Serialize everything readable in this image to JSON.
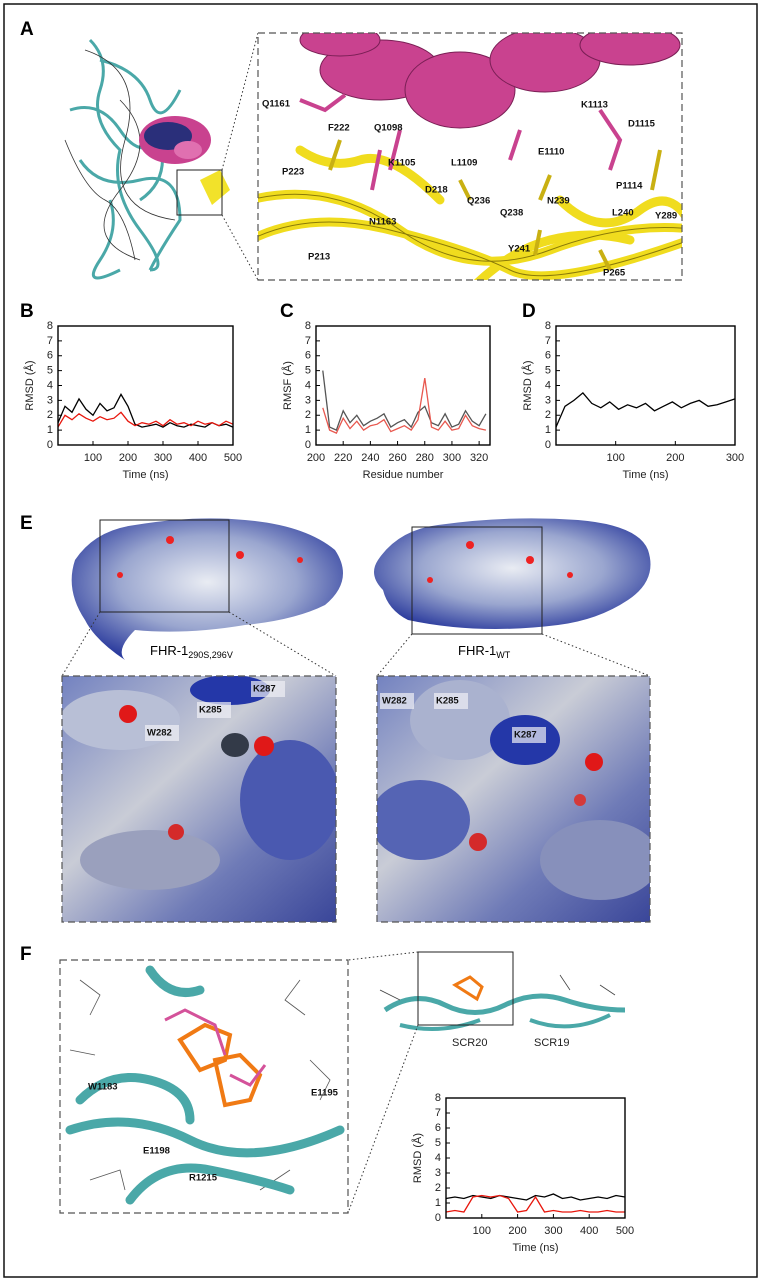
{
  "panel_labels": [
    "A",
    "B",
    "C",
    "D",
    "E",
    "F"
  ],
  "panel_a": {
    "residues": [
      "Q1161",
      "F222",
      "Q1098",
      "K1105",
      "L1109",
      "E1110",
      "K1113",
      "D1115",
      "P223",
      "D218",
      "Q236",
      "Q238",
      "N239",
      "P1114",
      "L240",
      "Y289",
      "N1163",
      "P213",
      "Y241",
      "P265"
    ]
  },
  "panel_e": {
    "left": {
      "name": "FHR-1",
      "subscript": "290S,296V",
      "residues": [
        "K287",
        "K285",
        "W282"
      ]
    },
    "right": {
      "name": "FHR-1",
      "subscript": "WT",
      "residues": [
        "W282",
        "K285",
        "K287"
      ]
    }
  },
  "panel_f": {
    "residues": [
      "W1183",
      "E1195",
      "E1198",
      "R1215"
    ],
    "domains": [
      "SCR20",
      "SCR19"
    ]
  },
  "chart_data": [
    {
      "type": "line",
      "x_label": "Time (ns)",
      "y_label": "RMSD (Å)",
      "x": [
        0,
        20,
        40,
        60,
        80,
        100,
        120,
        140,
        160,
        180,
        200,
        220,
        240,
        260,
        280,
        300,
        320,
        340,
        360,
        380,
        400,
        420,
        440,
        460,
        480,
        500
      ],
      "xlim": [
        0,
        500
      ],
      "xticks": [
        100,
        200,
        300,
        400,
        500
      ],
      "ylim": [
        0,
        8
      ],
      "yticks": [
        0,
        1,
        2,
        3,
        4,
        5,
        6,
        7,
        8
      ],
      "series": [
        {
          "color": "#000000",
          "values": [
            1.5,
            2.6,
            2.2,
            3.1,
            2.4,
            2.0,
            2.8,
            2.3,
            2.5,
            3.4,
            2.6,
            1.4,
            1.2,
            1.3,
            1.4,
            1.2,
            1.5,
            1.3,
            1.2,
            1.4,
            1.3,
            1.2,
            1.5,
            1.3,
            1.4,
            1.2
          ]
        },
        {
          "color": "#e8160c",
          "values": [
            1.2,
            2.0,
            1.7,
            2.1,
            1.8,
            1.6,
            1.9,
            1.7,
            1.8,
            2.2,
            1.6,
            1.3,
            1.5,
            1.4,
            1.6,
            1.3,
            1.7,
            1.4,
            1.5,
            1.3,
            1.6,
            1.4,
            1.5,
            1.3,
            1.6,
            1.4
          ]
        }
      ]
    },
    {
      "type": "line",
      "x_label": "Residue number",
      "y_label": "RMSF (Å)",
      "x": [
        205,
        210,
        215,
        220,
        225,
        230,
        235,
        240,
        245,
        250,
        255,
        260,
        265,
        270,
        275,
        280,
        285,
        290,
        295,
        300,
        305,
        310,
        315,
        320,
        325
      ],
      "xlim": [
        200,
        328
      ],
      "xticks": [
        200,
        220,
        240,
        260,
        280,
        300,
        320
      ],
      "ylim": [
        0,
        8
      ],
      "yticks": [
        0,
        1,
        2,
        3,
        4,
        5,
        6,
        7,
        8
      ],
      "series": [
        {
          "color": "#555555",
          "values": [
            5.0,
            1.2,
            1.0,
            2.3,
            1.5,
            2.0,
            1.3,
            1.6,
            1.8,
            2.1,
            1.2,
            1.5,
            1.7,
            1.2,
            2.2,
            2.6,
            1.5,
            1.3,
            2.1,
            1.2,
            1.4,
            2.3,
            1.6,
            1.3,
            2.1
          ]
        },
        {
          "color": "#e8584f",
          "values": [
            2.5,
            1.0,
            0.8,
            1.8,
            1.1,
            1.6,
            1.0,
            1.3,
            1.4,
            1.7,
            0.9,
            1.1,
            1.3,
            1.0,
            1.7,
            4.5,
            1.2,
            1.0,
            1.6,
            1.0,
            1.1,
            2.0,
            1.3,
            1.1,
            1.0
          ]
        }
      ]
    },
    {
      "type": "line",
      "x_label": "Time (ns)",
      "y_label": "RMSD (Å)",
      "x": [
        0,
        15,
        30,
        45,
        60,
        75,
        90,
        105,
        120,
        135,
        150,
        165,
        180,
        195,
        210,
        225,
        240,
        255,
        270,
        285,
        300
      ],
      "xlim": [
        0,
        300
      ],
      "xticks": [
        100,
        200,
        300
      ],
      "ylim": [
        0,
        8
      ],
      "yticks": [
        0,
        1,
        2,
        3,
        4,
        5,
        6,
        7,
        8
      ],
      "series": [
        {
          "color": "#000000",
          "values": [
            1.2,
            2.6,
            3.0,
            3.5,
            2.8,
            2.5,
            2.9,
            2.4,
            2.7,
            2.5,
            2.8,
            2.3,
            2.6,
            2.9,
            2.5,
            2.8,
            3.0,
            2.6,
            2.7,
            2.9,
            3.1
          ]
        }
      ]
    },
    {
      "type": "line",
      "x_label": "Time (ns)",
      "y_label": "RMSD (Å)",
      "x": [
        0,
        25,
        50,
        75,
        100,
        125,
        150,
        175,
        200,
        225,
        250,
        275,
        300,
        325,
        350,
        375,
        400,
        425,
        450,
        475,
        500
      ],
      "xlim": [
        0,
        500
      ],
      "xticks": [
        100,
        200,
        300,
        400,
        500
      ],
      "ylim": [
        0,
        8
      ],
      "yticks": [
        0,
        1,
        2,
        3,
        4,
        5,
        6,
        7,
        8
      ],
      "series": [
        {
          "color": "#000000",
          "values": [
            1.3,
            1.4,
            1.3,
            1.5,
            1.4,
            1.3,
            1.5,
            1.4,
            1.3,
            1.2,
            1.5,
            1.4,
            1.6,
            1.3,
            1.4,
            1.2,
            1.3,
            1.4,
            1.3,
            1.5,
            1.4
          ]
        },
        {
          "color": "#e8160c",
          "values": [
            0.4,
            0.5,
            0.4,
            1.4,
            1.5,
            1.4,
            1.5,
            1.3,
            0.4,
            0.5,
            1.4,
            0.4,
            0.5,
            0.4,
            0.4,
            0.5,
            0.4,
            0.4,
            0.5,
            0.4,
            0.4
          ]
        }
      ]
    }
  ]
}
